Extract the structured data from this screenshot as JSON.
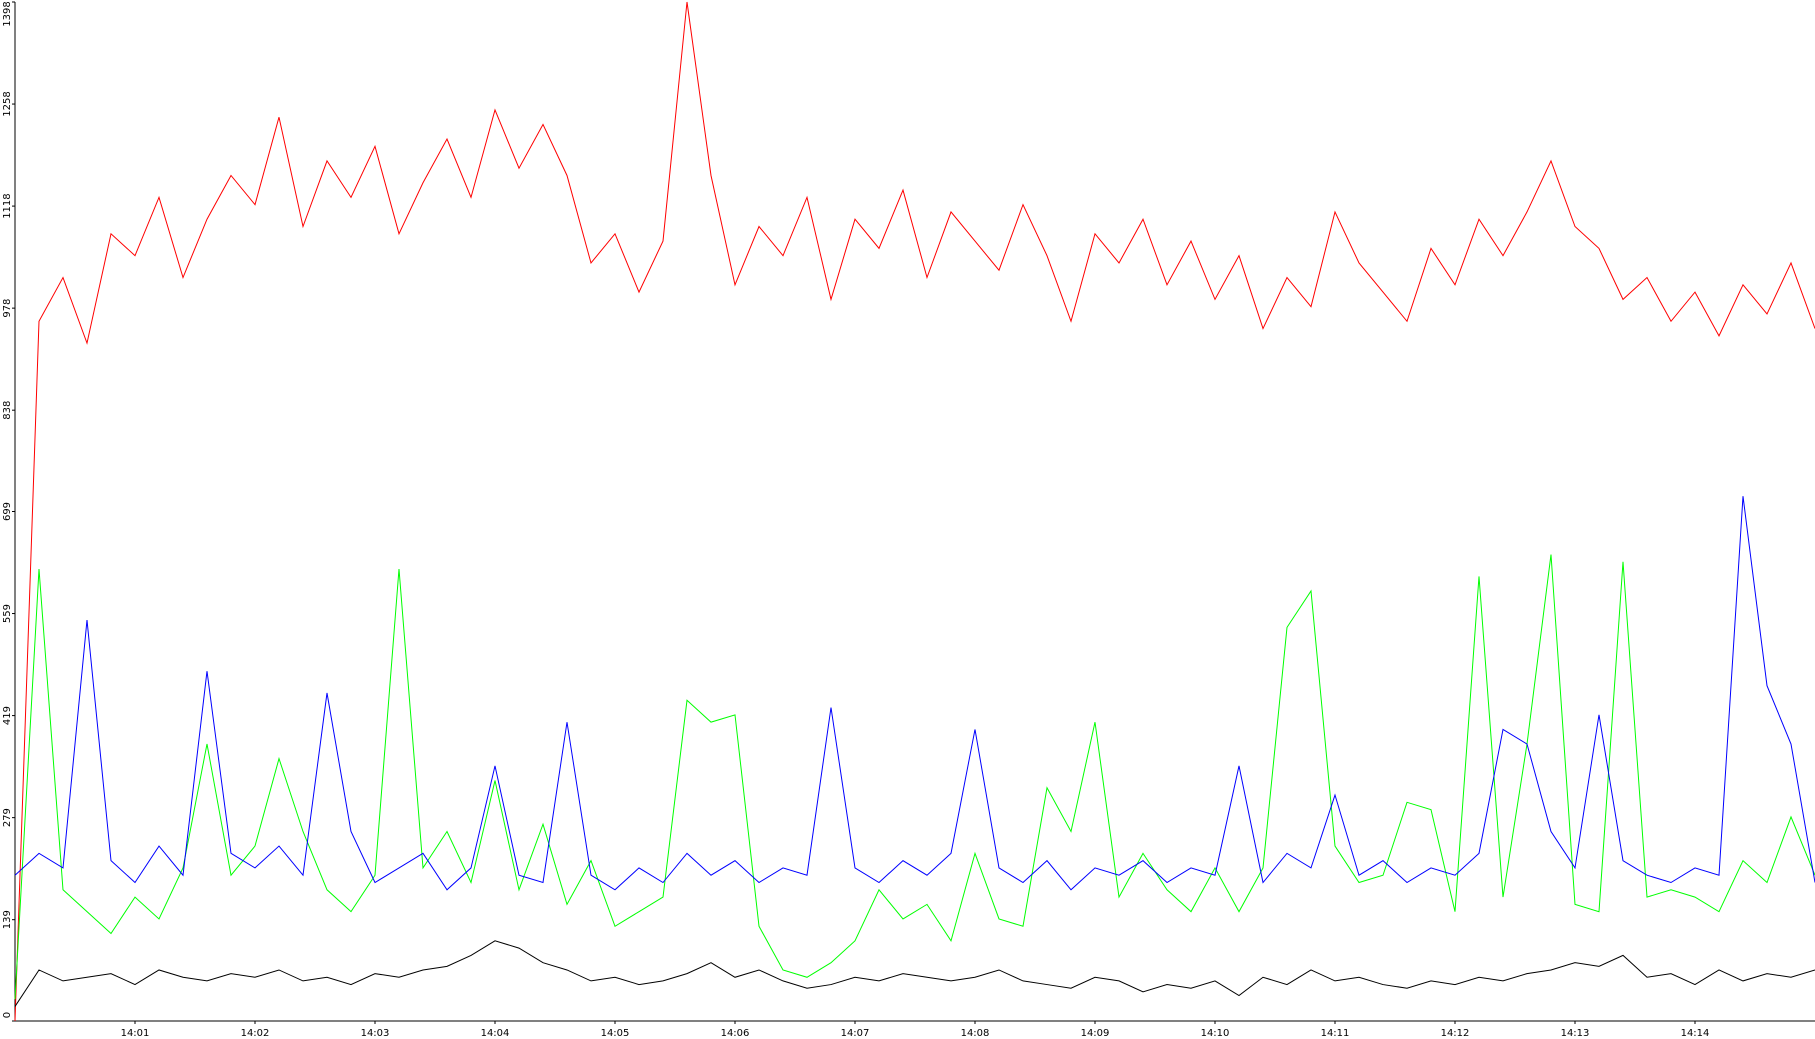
{
  "chart_data": {
    "type": "line",
    "x": [
      840.0,
      840.2,
      840.4,
      840.6,
      840.8,
      841.0,
      841.2,
      841.4,
      841.6,
      841.8,
      842.0,
      842.2,
      842.4,
      842.6,
      842.8,
      843.0,
      843.2,
      843.4,
      843.6,
      843.8,
      844.0,
      844.2,
      844.4,
      844.6,
      844.8,
      845.0,
      845.2,
      845.4,
      845.6,
      845.8,
      846.0,
      846.2,
      846.4,
      846.6,
      846.8,
      847.0,
      847.2,
      847.4,
      847.6,
      847.8,
      848.0,
      848.2,
      848.4,
      848.6,
      848.8,
      849.0,
      849.2,
      849.4,
      849.6,
      849.8,
      850.0,
      850.2,
      850.4,
      850.6,
      850.8,
      851.0,
      851.2,
      851.4,
      851.6,
      851.8,
      852.0,
      852.2,
      852.4,
      852.6,
      852.8,
      853.0,
      853.2,
      853.4,
      853.6,
      853.8,
      854.0,
      854.2,
      854.4,
      854.6,
      854.8,
      855.0
    ],
    "series": [
      {
        "color": "#ff0000",
        "values": [
          0,
          960,
          1020,
          930,
          1080,
          1050,
          1130,
          1020,
          1100,
          1160,
          1120,
          1240,
          1090,
          1180,
          1130,
          1200,
          1080,
          1150,
          1210,
          1130,
          1250,
          1170,
          1230,
          1160,
          1040,
          1080,
          1000,
          1070,
          1398,
          1160,
          1010,
          1090,
          1050,
          1130,
          990,
          1100,
          1060,
          1140,
          1020,
          1110,
          1070,
          1030,
          1120,
          1050,
          960,
          1080,
          1040,
          1100,
          1010,
          1070,
          990,
          1050,
          950,
          1020,
          980,
          1110,
          1040,
          1000,
          960,
          1060,
          1010,
          1100,
          1050,
          1110,
          1180,
          1090,
          1060,
          990,
          1020,
          960,
          1000,
          940,
          1010,
          970,
          1040,
          950
        ]
      },
      {
        "color": "#00ff00",
        "values": [
          30,
          620,
          180,
          150,
          120,
          170,
          140,
          210,
          380,
          200,
          240,
          360,
          260,
          180,
          150,
          200,
          620,
          210,
          260,
          190,
          330,
          180,
          270,
          160,
          220,
          130,
          150,
          170,
          440,
          410,
          420,
          130,
          70,
          60,
          80,
          110,
          180,
          140,
          160,
          110,
          230,
          140,
          130,
          320,
          260,
          410,
          170,
          230,
          180,
          150,
          210,
          150,
          210,
          540,
          590,
          240,
          190,
          200,
          300,
          290,
          150,
          610,
          170,
          380,
          640,
          160,
          150,
          630,
          170,
          180,
          170,
          150,
          220,
          190,
          280,
          200
        ]
      },
      {
        "color": "#0000ff",
        "values": [
          200,
          230,
          210,
          550,
          220,
          190,
          240,
          200,
          480,
          230,
          210,
          240,
          200,
          450,
          260,
          190,
          210,
          230,
          180,
          210,
          350,
          200,
          190,
          410,
          200,
          180,
          210,
          190,
          230,
          200,
          220,
          190,
          210,
          200,
          430,
          210,
          190,
          220,
          200,
          230,
          400,
          210,
          190,
          220,
          180,
          210,
          200,
          220,
          190,
          210,
          200,
          350,
          190,
          230,
          210,
          310,
          200,
          220,
          190,
          210,
          200,
          230,
          400,
          380,
          260,
          210,
          420,
          220,
          200,
          190,
          210,
          200,
          720,
          460,
          380,
          190
        ]
      },
      {
        "color": "#000000",
        "values": [
          20,
          70,
          55,
          60,
          65,
          50,
          70,
          60,
          55,
          65,
          60,
          70,
          55,
          60,
          50,
          65,
          60,
          70,
          75,
          90,
          110,
          100,
          80,
          70,
          55,
          60,
          50,
          55,
          65,
          80,
          60,
          70,
          55,
          45,
          50,
          60,
          55,
          65,
          60,
          55,
          60,
          70,
          55,
          50,
          45,
          60,
          55,
          40,
          50,
          45,
          55,
          35,
          60,
          50,
          70,
          55,
          60,
          50,
          45,
          55,
          50,
          60,
          55,
          65,
          70,
          80,
          75,
          90,
          60,
          65,
          50,
          70,
          55,
          65,
          60,
          70
        ]
      }
    ],
    "xlim": [
      840,
      855
    ],
    "xticks": [
      {
        "value": 841,
        "label": "14:01"
      },
      {
        "value": 842,
        "label": "14:02"
      },
      {
        "value": 843,
        "label": "14:03"
      },
      {
        "value": 844,
        "label": "14:04"
      },
      {
        "value": 845,
        "label": "14:05"
      },
      {
        "value": 846,
        "label": "14:06"
      },
      {
        "value": 847,
        "label": "14:07"
      },
      {
        "value": 848,
        "label": "14:08"
      },
      {
        "value": 849,
        "label": "14:09"
      },
      {
        "value": 850,
        "label": "14:10"
      },
      {
        "value": 851,
        "label": "14:11"
      },
      {
        "value": 852,
        "label": "14:12"
      },
      {
        "value": 853,
        "label": "14:13"
      },
      {
        "value": 854,
        "label": "14:14"
      }
    ],
    "ylim": [
      0,
      1398
    ],
    "yticks": [
      0,
      139,
      279,
      419,
      559,
      699,
      838,
      978,
      1118,
      1258,
      1398
    ]
  }
}
